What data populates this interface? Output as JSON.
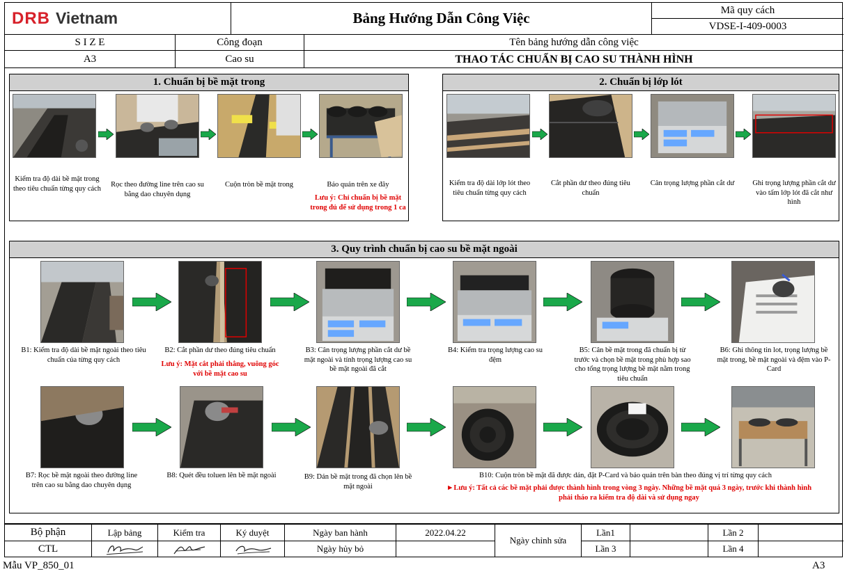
{
  "header": {
    "logo_mark": "DRB",
    "logo_text": "Vietnam",
    "doc_title": "Bảng Hướng Dẫn Công Việc",
    "spec_code_label": "Mã quy cách",
    "spec_code_value": "VDSE-I-409-0003",
    "size_label": "S I Z E",
    "size_value": "A3",
    "stage_label": "Công đoạn",
    "stage_value": "Cao su",
    "guide_name_label": "Tên bảng hướng dẫn công việc",
    "guide_name_value": "THAO TÁC CHUẨN BỊ CAO SU THÀNH HÌNH"
  },
  "section1": {
    "title": "1.  Chuẩn bị bề mặt trong",
    "steps": [
      {
        "caption": "Kiểm tra độ dài bề mặt trong theo tiêu chuẩn từng quy cách"
      },
      {
        "caption": "Rọc theo đường line trên cao su bằng dao chuyên dụng"
      },
      {
        "caption": "Cuộn tròn bề mặt trong"
      },
      {
        "caption": "Bảo quản trên xe đây",
        "note": "Lưu ý: Chỉ chuẩn bị bề mặt trong đủ để sử dụng trong 1 ca"
      }
    ]
  },
  "section2": {
    "title": "2.  Chuẩn bị lớp lót",
    "steps": [
      {
        "caption": "Kiểm tra độ dài lớp lót theo tiêu chuẩn từng quy cách"
      },
      {
        "caption": "Cắt phần dư theo đúng tiêu chuẩn"
      },
      {
        "caption": "Cân trọng lượng phần cắt dư"
      },
      {
        "caption": "Ghi trọng lượng phần cắt dư vào tấm lớp lót đã cắt như hình"
      }
    ]
  },
  "section3": {
    "title": "3.  Quy trình chuẩn bị cao su bề mặt ngoài",
    "steps": [
      {
        "caption": "B1: Kiểm tra độ dài bề mặt ngoài theo tiêu chuẩn của từng quy cách"
      },
      {
        "caption": "B2: Cắt phần dư theo đúng tiêu chuẩn",
        "note": "Lưu ý: Mặt cắt phải thẳng, vuông góc với bề mặt cao su"
      },
      {
        "caption": "B3: Cân trọng lượng phần cắt dư bề mặt ngoài và tính trọng lượng cao su bề mặt ngoài đã cắt"
      },
      {
        "caption": "B4: Kiểm tra trọng lượng cao su đệm"
      },
      {
        "caption": "B5: Cân bề mặt trong đã chuẩn bị từ trước và chọn bề mặt trong phù hợp sao cho tổng trọng lượng bề mặt nằm trong tiêu chuẩn"
      },
      {
        "caption": "B6: Ghi thông tin lot, trọng lượng bề mặt trong, bề mặt ngoài và đệm vào P-Card"
      },
      {
        "caption": "B7: Rọc bề mặt ngoài theo đường line trên cao su bằng dao chuyên dụng"
      },
      {
        "caption": "B8: Quét đều toluen lên bề mặt ngoài"
      },
      {
        "caption": "B9: Dán bề mặt trong đã chọn lên bề mặt ngoài"
      },
      {
        "caption": "B10: Cuộn tròn bề mặt đã được dán, đặt P-Card và bảo quản trên bàn theo đúng vị trí từng quy cách",
        "note": "►Lưu ý: Tất cả các bề mặt phải được thành hình trong vòng 3 ngày. Những bề mặt quá 3 ngày, trước khi thành hình phải tháo ra kiểm tra độ dài và sử dụng ngay"
      }
    ]
  },
  "footer": {
    "dept_label": "Bộ phận",
    "dept_value": "CTL",
    "prepared_label": "Lập bảng",
    "checked_label": "Kiểm tra",
    "approved_label": "Ký duyệt",
    "issue_date_label": "Ngày ban hành",
    "issue_date_value": "2022.04.22",
    "cancel_date_label": "Ngày hủy bỏ",
    "revision_label": "Ngày chỉnh sửa",
    "rev1": "Lần1",
    "rev2": "Lần 2",
    "rev3": "Lần 3",
    "rev4": "Lần 4",
    "form_code": "Mẫu VP_850_01",
    "paper_size": "A3"
  },
  "colors": {
    "arrow_fill": "#1aa84a",
    "note_text": "#e00000",
    "section_title_bg": "#d0d0d0",
    "logo_red": "#d7212a"
  }
}
